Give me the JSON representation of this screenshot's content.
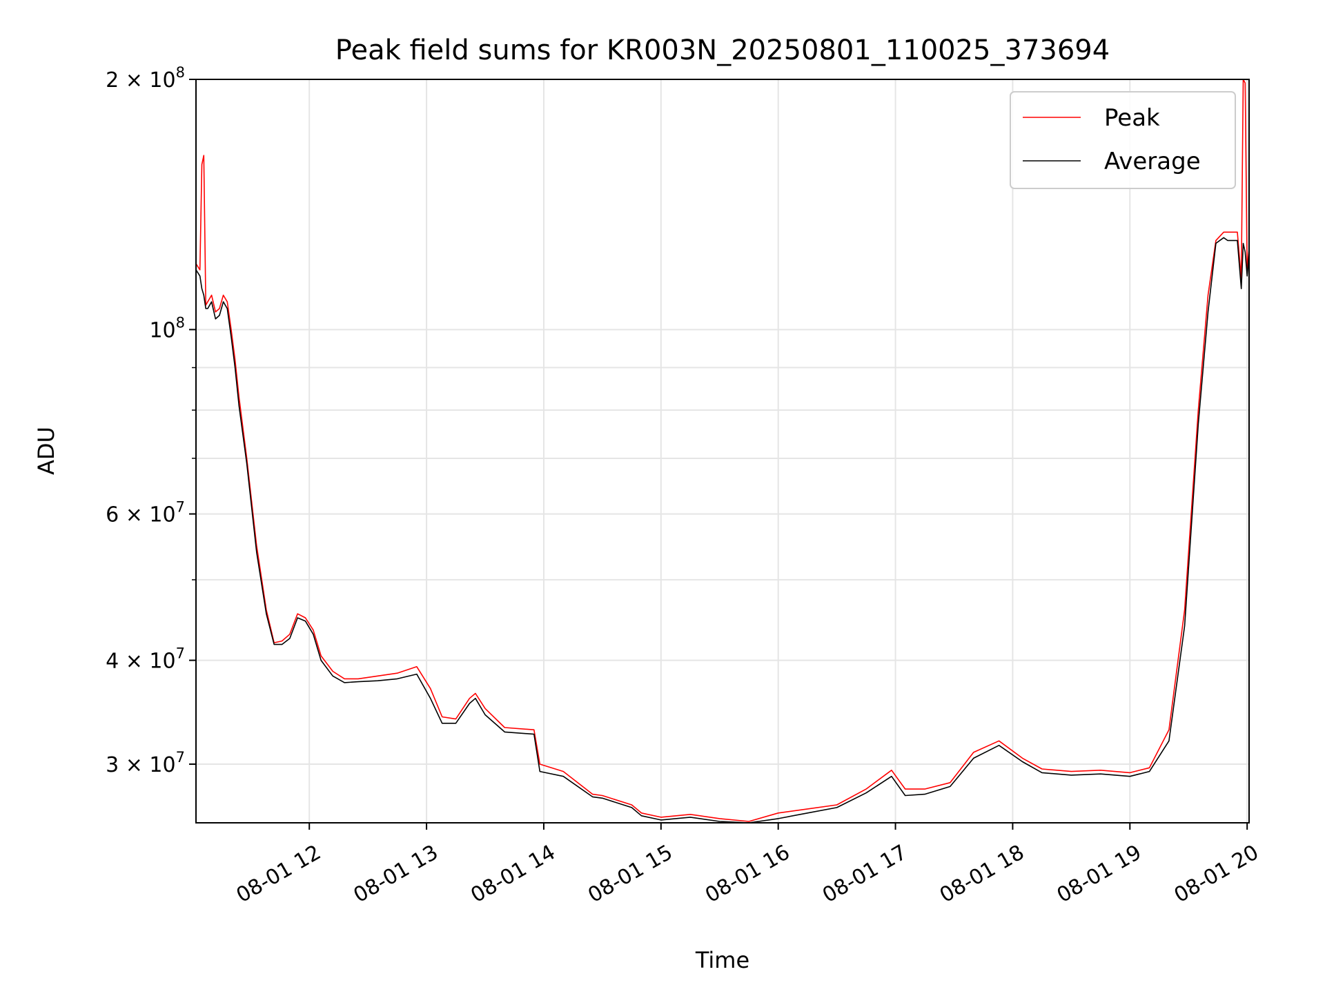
{
  "chart_data": {
    "type": "line",
    "title": "Peak field sums for KR003N_20250801_110025_373694",
    "xlabel": "Time",
    "ylabel": "ADU",
    "y_scale": "log",
    "xlim": [
      "2025-08-01 11:02",
      "2025-08-01 20:01"
    ],
    "ylim": [
      25500000,
      200000000
    ],
    "x_tick_labels": [
      "08-01 12",
      "08-01 13",
      "08-01 14",
      "08-01 15",
      "08-01 16",
      "08-01 17",
      "08-01 18",
      "08-01 19",
      "08-01 20"
    ],
    "y_tick_values": [
      200000000,
      100000000,
      60000000,
      40000000,
      30000000
    ],
    "y_tick_labels": [
      {
        "base": "2 × 10",
        "exp": "8"
      },
      {
        "base": "10",
        "exp": "8"
      },
      {
        "base": "6 × 10",
        "exp": "7"
      },
      {
        "base": "4 × 10",
        "exp": "7"
      },
      {
        "base": "3 × 10",
        "exp": "7"
      }
    ],
    "grid": true,
    "legend_position": "top-right",
    "series": [
      {
        "name": "Peak",
        "color": "#ff0000",
        "x": [
          "2025-08-01 11:02",
          "2025-08-01 11:04",
          "2025-08-01 11:05",
          "2025-08-01 11:06",
          "2025-08-01 11:07",
          "2025-08-01 11:08",
          "2025-08-01 11:10",
          "2025-08-01 11:12",
          "2025-08-01 11:14",
          "2025-08-01 11:16",
          "2025-08-01 11:18",
          "2025-08-01 11:20",
          "2025-08-01 11:22",
          "2025-08-01 11:24",
          "2025-08-01 11:28",
          "2025-08-01 11:33",
          "2025-08-01 11:38",
          "2025-08-01 11:42",
          "2025-08-01 11:46",
          "2025-08-01 11:50",
          "2025-08-01 11:54",
          "2025-08-01 11:58",
          "2025-08-01 12:02",
          "2025-08-01 12:06",
          "2025-08-01 12:12",
          "2025-08-01 12:18",
          "2025-08-01 12:25",
          "2025-08-01 12:35",
          "2025-08-01 12:45",
          "2025-08-01 12:55",
          "2025-08-01 13:02",
          "2025-08-01 13:08",
          "2025-08-01 13:15",
          "2025-08-01 13:22",
          "2025-08-01 13:25",
          "2025-08-01 13:30",
          "2025-08-01 13:40",
          "2025-08-01 13:55",
          "2025-08-01 13:58",
          "2025-08-01 14:10",
          "2025-08-01 14:25",
          "2025-08-01 14:30",
          "2025-08-01 14:45",
          "2025-08-01 14:50",
          "2025-08-01 15:00",
          "2025-08-01 15:15",
          "2025-08-01 15:30",
          "2025-08-01 15:45",
          "2025-08-01 16:00",
          "2025-08-01 16:15",
          "2025-08-01 16:30",
          "2025-08-01 16:45",
          "2025-08-01 16:58",
          "2025-08-01 17:05",
          "2025-08-01 17:15",
          "2025-08-01 17:28",
          "2025-08-01 17:40",
          "2025-08-01 17:53",
          "2025-08-01 18:05",
          "2025-08-01 18:15",
          "2025-08-01 18:30",
          "2025-08-01 18:45",
          "2025-08-01 19:00",
          "2025-08-01 19:10",
          "2025-08-01 19:20",
          "2025-08-01 19:28",
          "2025-08-01 19:35",
          "2025-08-01 19:40",
          "2025-08-01 19:44",
          "2025-08-01 19:48",
          "2025-08-01 19:50",
          "2025-08-01 19:52",
          "2025-08-01 19:55",
          "2025-08-01 19:57",
          "2025-08-01 19:58",
          "2025-08-01 19:59",
          "2025-08-01 20:00",
          "2025-08-01 20:01"
        ],
        "y": [
          120000000,
          118000000,
          158000000,
          162000000,
          107000000,
          108000000,
          110000000,
          105000000,
          106000000,
          110000000,
          108000000,
          100000000,
          92000000,
          83000000,
          70000000,
          55000000,
          46000000,
          42000000,
          42200000,
          43000000,
          45500000,
          45000000,
          43500000,
          40500000,
          38800000,
          38000000,
          38000000,
          38300000,
          38600000,
          39300000,
          37000000,
          34200000,
          34000000,
          36000000,
          36500000,
          35000000,
          33200000,
          33000000,
          30000000,
          29400000,
          27600000,
          27500000,
          26800000,
          26200000,
          25900000,
          26100000,
          25800000,
          25600000,
          26200000,
          26500000,
          26800000,
          28000000,
          29500000,
          28000000,
          28000000,
          28500000,
          31000000,
          32000000,
          30500000,
          29600000,
          29400000,
          29500000,
          29300000,
          29700000,
          33000000,
          46000000,
          80000000,
          110000000,
          128000000,
          131000000,
          131000000,
          131000000,
          131000000,
          115000000,
          200000000,
          198000000,
          118000000,
          125000000
        ]
      },
      {
        "name": "Average",
        "color": "#000000",
        "x": [
          "2025-08-01 11:02",
          "2025-08-01 11:04",
          "2025-08-01 11:05",
          "2025-08-01 11:06",
          "2025-08-01 11:07",
          "2025-08-01 11:08",
          "2025-08-01 11:10",
          "2025-08-01 11:12",
          "2025-08-01 11:14",
          "2025-08-01 11:16",
          "2025-08-01 11:18",
          "2025-08-01 11:20",
          "2025-08-01 11:22",
          "2025-08-01 11:24",
          "2025-08-01 11:28",
          "2025-08-01 11:33",
          "2025-08-01 11:38",
          "2025-08-01 11:42",
          "2025-08-01 11:46",
          "2025-08-01 11:50",
          "2025-08-01 11:54",
          "2025-08-01 11:58",
          "2025-08-01 12:02",
          "2025-08-01 12:06",
          "2025-08-01 12:12",
          "2025-08-01 12:18",
          "2025-08-01 12:25",
          "2025-08-01 12:35",
          "2025-08-01 12:45",
          "2025-08-01 12:55",
          "2025-08-01 13:02",
          "2025-08-01 13:08",
          "2025-08-01 13:15",
          "2025-08-01 13:22",
          "2025-08-01 13:25",
          "2025-08-01 13:30",
          "2025-08-01 13:40",
          "2025-08-01 13:55",
          "2025-08-01 13:58",
          "2025-08-01 14:10",
          "2025-08-01 14:25",
          "2025-08-01 14:30",
          "2025-08-01 14:45",
          "2025-08-01 14:50",
          "2025-08-01 15:00",
          "2025-08-01 15:15",
          "2025-08-01 15:30",
          "2025-08-01 15:45",
          "2025-08-01 16:00",
          "2025-08-01 16:15",
          "2025-08-01 16:30",
          "2025-08-01 16:45",
          "2025-08-01 16:58",
          "2025-08-01 17:05",
          "2025-08-01 17:15",
          "2025-08-01 17:28",
          "2025-08-01 17:40",
          "2025-08-01 17:53",
          "2025-08-01 18:05",
          "2025-08-01 18:15",
          "2025-08-01 18:30",
          "2025-08-01 18:45",
          "2025-08-01 19:00",
          "2025-08-01 19:10",
          "2025-08-01 19:20",
          "2025-08-01 19:28",
          "2025-08-01 19:35",
          "2025-08-01 19:40",
          "2025-08-01 19:44",
          "2025-08-01 19:48",
          "2025-08-01 19:50",
          "2025-08-01 19:52",
          "2025-08-01 19:55",
          "2025-08-01 19:57",
          "2025-08-01 19:58",
          "2025-08-01 19:59",
          "2025-08-01 20:00",
          "2025-08-01 20:01"
        ],
        "y": [
          118000000,
          116000000,
          112000000,
          110000000,
          106000000,
          106000000,
          108000000,
          103000000,
          104000000,
          108000000,
          106000000,
          98000000,
          90000000,
          81000000,
          69000000,
          54000000,
          45500000,
          41800000,
          41800000,
          42500000,
          45000000,
          44600000,
          43000000,
          40000000,
          38300000,
          37600000,
          37700000,
          37800000,
          38000000,
          38500000,
          36000000,
          33600000,
          33600000,
          35500000,
          36000000,
          34400000,
          32800000,
          32600000,
          29400000,
          29000000,
          27400000,
          27300000,
          26600000,
          26000000,
          25700000,
          25900000,
          25600000,
          25500000,
          25800000,
          26200000,
          26600000,
          27700000,
          29000000,
          27500000,
          27600000,
          28200000,
          30500000,
          31600000,
          30200000,
          29300000,
          29100000,
          29200000,
          29000000,
          29400000,
          32000000,
          44000000,
          77000000,
          105000000,
          127000000,
          129000000,
          128000000,
          128000000,
          128000000,
          112000000,
          127000000,
          124000000,
          116000000,
          124000000
        ]
      }
    ]
  }
}
